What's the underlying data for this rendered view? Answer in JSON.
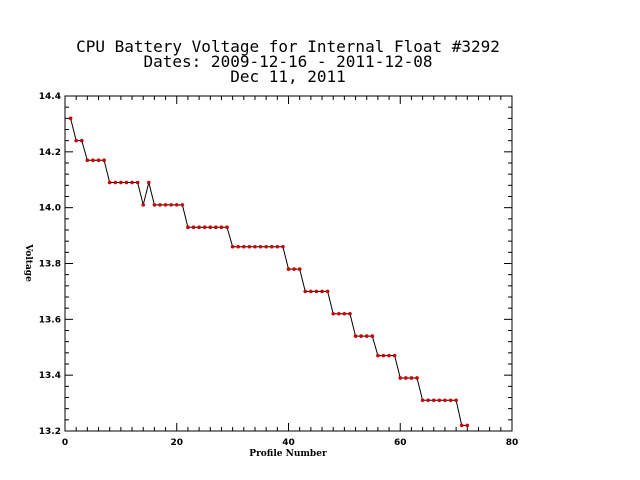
{
  "chart_data": {
    "type": "line",
    "title": [
      "CPU Battery Voltage for Internal Float #3292",
      "Dates:  2009-12-16 -  2011-12-08",
      "Dec 11, 2011"
    ],
    "xlabel": "Profile Number",
    "ylabel": "Voltage",
    "xlim": [
      0,
      80
    ],
    "ylim": [
      13.2,
      14.4
    ],
    "xticks": [
      0,
      20,
      40,
      60,
      80
    ],
    "yticks": [
      13.2,
      13.4,
      13.6,
      13.8,
      14.0,
      14.2,
      14.4
    ],
    "grid": false,
    "series": [
      {
        "color": "#cc0000",
        "line_color": "#000000",
        "x": [
          1,
          2,
          3,
          4,
          5,
          6,
          7,
          8,
          9,
          10,
          11,
          12,
          13,
          14,
          15,
          16,
          17,
          18,
          19,
          20,
          21,
          22,
          23,
          24,
          25,
          26,
          27,
          28,
          29,
          30,
          31,
          32,
          33,
          34,
          35,
          36,
          37,
          38,
          39,
          40,
          41,
          42,
          43,
          44,
          45,
          46,
          47,
          48,
          49,
          50,
          51,
          52,
          53,
          54,
          55,
          56,
          57,
          58,
          59,
          60,
          61,
          62,
          63,
          64,
          65,
          66,
          67,
          68,
          69,
          70,
          71,
          72
        ],
        "y": [
          14.32,
          14.24,
          14.24,
          14.17,
          14.17,
          14.17,
          14.17,
          14.09,
          14.09,
          14.09,
          14.09,
          14.09,
          14.09,
          14.01,
          14.09,
          14.01,
          14.01,
          14.01,
          14.01,
          14.01,
          14.01,
          13.93,
          13.93,
          13.93,
          13.93,
          13.93,
          13.93,
          13.93,
          13.93,
          13.86,
          13.86,
          13.86,
          13.86,
          13.86,
          13.86,
          13.86,
          13.86,
          13.86,
          13.86,
          13.78,
          13.78,
          13.78,
          13.7,
          13.7,
          13.7,
          13.7,
          13.7,
          13.62,
          13.62,
          13.62,
          13.62,
          13.54,
          13.54,
          13.54,
          13.54,
          13.47,
          13.47,
          13.47,
          13.47,
          13.39,
          13.39,
          13.39,
          13.39,
          13.31,
          13.31,
          13.31,
          13.31,
          13.31,
          13.31,
          13.31,
          13.22,
          13.22
        ]
      }
    ]
  }
}
